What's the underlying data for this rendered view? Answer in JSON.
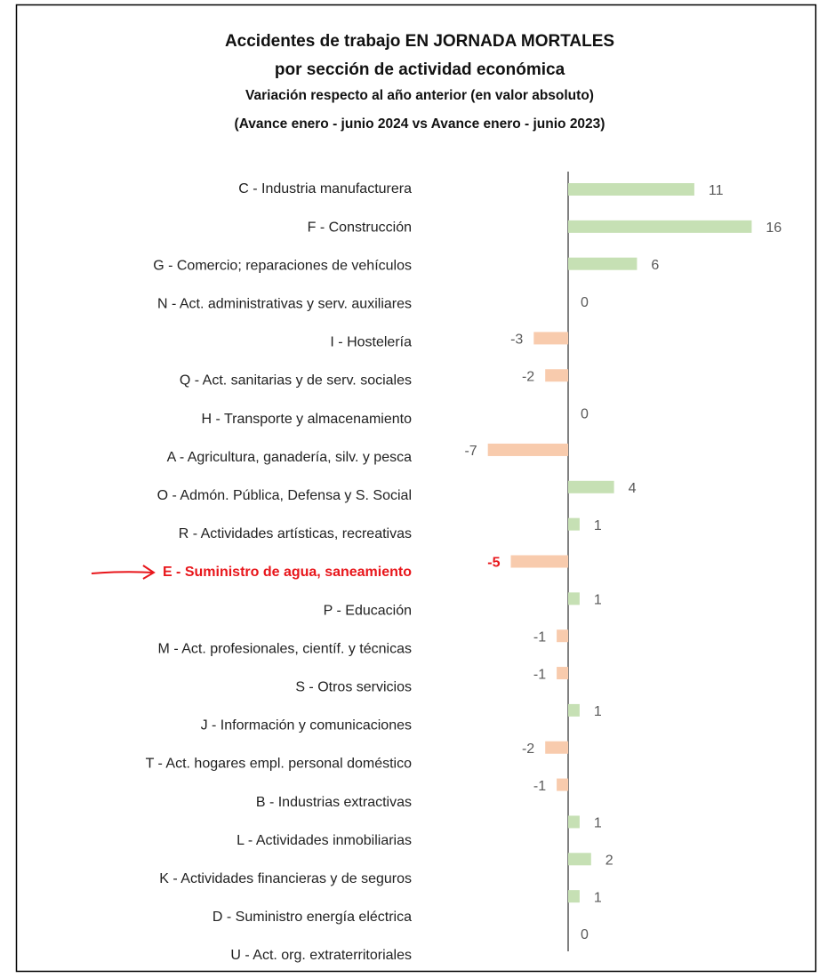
{
  "chart_data": {
    "type": "barh",
    "title": "Accidentes de trabajo EN JORNADA MORTALES",
    "title_line2": "por sección de actividad económica",
    "subtitle": "Variación  respecto al año anterior (en valor absoluto)",
    "subtitle_line2": "(Avance enero - junio 2024 vs Avance enero - junio 2023)",
    "categories": [
      "C - Industria manufacturera",
      "F - Construcción",
      "G - Comercio; reparaciones de vehículos",
      "N - Act. administrativas y serv. auxiliares",
      "I - Hostelería",
      "Q - Act. sanitarias y de serv. sociales",
      "H - Transporte y almacenamiento",
      "A - Agricultura, ganadería, silv. y pesca",
      "O - Admón. Pública, Defensa y S. Social",
      "R - Actividades artísticas, recreativas",
      "E - Suministro de agua, saneamiento",
      "P - Educación",
      "M - Act. profesionales, científ. y técnicas",
      "S - Otros servicios",
      "J - Información y comunicaciones",
      "T - Act. hogares empl. personal doméstico",
      "B - Industrias extractivas",
      "L - Actividades inmobiliarias",
      "K - Actividades financieras y de seguros",
      "D - Suministro energía eléctrica",
      "U - Act. org. extraterritoriales"
    ],
    "values": [
      11,
      16,
      6,
      0,
      -3,
      -2,
      0,
      -7,
      4,
      1,
      -5,
      1,
      -1,
      -1,
      1,
      -2,
      -1,
      1,
      2,
      1,
      0
    ],
    "positive_color": "#c6e0b4",
    "negative_color": "#f8cbad",
    "highlight_index": 10,
    "highlight_color": "#e8161b"
  }
}
